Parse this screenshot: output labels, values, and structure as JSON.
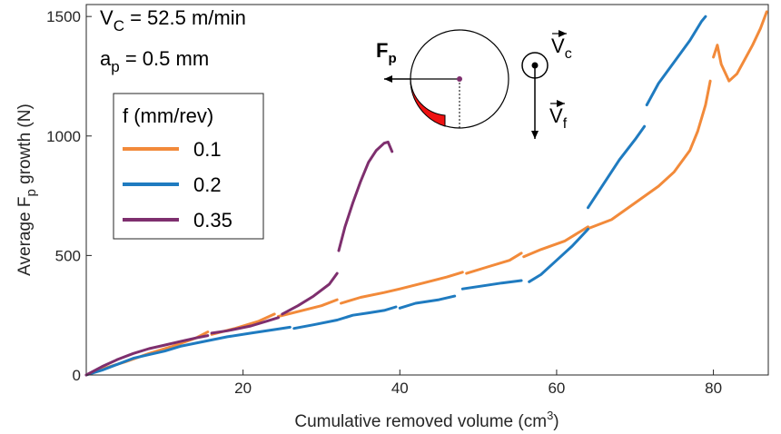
{
  "chart_data": {
    "type": "line",
    "xlabel_main": "Cumulative removed volume (cm",
    "xlabel_sup": "3",
    "xlabel_end": ")",
    "ylabel_main": "Average F",
    "ylabel_sub": "p",
    "ylabel_end": " growth (N)",
    "xlim": [
      0,
      87
    ],
    "ylim": [
      0,
      1550
    ],
    "xticks": [
      20,
      40,
      60,
      80
    ],
    "yticks": [
      0,
      500,
      1000,
      1500
    ],
    "grid": false,
    "legend": {
      "title": "f (mm/rev)",
      "placement": "upper-left"
    },
    "annotations": {
      "vc_sym": "V",
      "vc_sub": "C",
      "vc_val": " = 52.5 m/min",
      "ap_sym": "a",
      "ap_sub": "p",
      "ap_val": " = 0.5 mm",
      "fp_sym": "F",
      "fp_sub": "p",
      "vc_vec": "V",
      "vc_vec_sub": "c",
      "vf_vec": "V",
      "vf_vec_sub": "f"
    },
    "series": [
      {
        "name": "0.1",
        "color": "#F28A3A",
        "segments": [
          [
            [
              0,
              0
            ],
            [
              2,
              25
            ],
            [
              5,
              55
            ],
            [
              8,
              90
            ],
            [
              11,
              120
            ],
            [
              14,
              155
            ],
            [
              15.5,
              180
            ]
          ],
          [
            [
              16,
              170
            ],
            [
              19,
              195
            ],
            [
              22,
              225
            ],
            [
              24,
              255
            ]
          ],
          [
            [
              24.5,
              245
            ],
            [
              27,
              265
            ],
            [
              30,
              290
            ],
            [
              32,
              315
            ]
          ],
          [
            [
              32.5,
              300
            ],
            [
              35,
              325
            ],
            [
              38,
              345
            ],
            [
              40,
              360
            ],
            [
              43,
              385
            ],
            [
              46,
              410
            ],
            [
              48,
              430
            ]
          ],
          [
            [
              48.5,
              425
            ],
            [
              51,
              450
            ],
            [
              54,
              480
            ],
            [
              55.5,
              510
            ]
          ],
          [
            [
              55.8,
              495
            ],
            [
              58,
              525
            ],
            [
              61,
              560
            ],
            [
              63,
              600
            ],
            [
              64,
              620
            ]
          ],
          [
            [
              64.2,
              615
            ],
            [
              67,
              650
            ],
            [
              70,
              720
            ],
            [
              73,
              790
            ],
            [
              75,
              850
            ],
            [
              77,
              940
            ],
            [
              78,
              1020
            ],
            [
              79,
              1130
            ],
            [
              79.6,
              1230
            ]
          ],
          [
            [
              80,
              1330
            ],
            [
              80.5,
              1380
            ],
            [
              81,
              1300
            ],
            [
              82,
              1230
            ],
            [
              83,
              1260
            ],
            [
              84,
              1320
            ],
            [
              85,
              1380
            ],
            [
              86,
              1450
            ],
            [
              86.8,
              1520
            ]
          ]
        ]
      },
      {
        "name": "0.2",
        "color": "#1F7BC0",
        "segments": [
          [
            [
              0,
              0
            ],
            [
              2,
              20
            ],
            [
              4,
              45
            ],
            [
              6,
              70
            ],
            [
              8,
              85
            ],
            [
              10,
              100
            ],
            [
              12,
              120
            ],
            [
              15,
              140
            ],
            [
              18,
              160
            ],
            [
              21,
              175
            ],
            [
              24,
              190
            ],
            [
              26,
              200
            ]
          ],
          [
            [
              26.5,
              195
            ],
            [
              29,
              210
            ],
            [
              32,
              230
            ],
            [
              34,
              250
            ],
            [
              36,
              260
            ],
            [
              38,
              270
            ],
            [
              39.5,
              285
            ]
          ],
          [
            [
              40,
              280
            ],
            [
              42,
              300
            ],
            [
              45,
              315
            ],
            [
              47,
              330
            ]
          ],
          [
            [
              48,
              360
            ],
            [
              51,
              375
            ],
            [
              53,
              385
            ],
            [
              55.5,
              395
            ]
          ],
          [
            [
              56.5,
              390
            ],
            [
              58,
              420
            ],
            [
              60,
              480
            ],
            [
              62,
              540
            ],
            [
              64,
              610
            ]
          ],
          [
            [
              64,
              700
            ],
            [
              66,
              800
            ],
            [
              68,
              900
            ],
            [
              70,
              985
            ],
            [
              71.2,
              1040
            ]
          ],
          [
            [
              71.5,
              1130
            ],
            [
              73,
              1220
            ],
            [
              75,
              1310
            ],
            [
              77,
              1400
            ],
            [
              78.5,
              1480
            ],
            [
              79,
              1500
            ]
          ]
        ]
      },
      {
        "name": "0.35",
        "color": "#7E2F6E",
        "segments": [
          [
            [
              0,
              0
            ],
            [
              2,
              35
            ],
            [
              4,
              65
            ],
            [
              6,
              90
            ],
            [
              8,
              110
            ],
            [
              10,
              125
            ],
            [
              12,
              140
            ],
            [
              14,
              155
            ],
            [
              15.5,
              165
            ]
          ],
          [
            [
              16,
              175
            ],
            [
              18,
              185
            ],
            [
              21,
              205
            ],
            [
              23,
              225
            ],
            [
              24.5,
              240
            ]
          ],
          [
            [
              25,
              255
            ],
            [
              27,
              290
            ],
            [
              29,
              330
            ],
            [
              31,
              380
            ],
            [
              32,
              425
            ]
          ],
          [
            [
              32.2,
              520
            ],
            [
              33,
              620
            ],
            [
              34,
              720
            ],
            [
              35,
              810
            ],
            [
              36,
              890
            ],
            [
              37,
              940
            ],
            [
              38,
              970
            ],
            [
              38.5,
              975
            ],
            [
              39,
              935
            ]
          ]
        ]
      }
    ]
  }
}
